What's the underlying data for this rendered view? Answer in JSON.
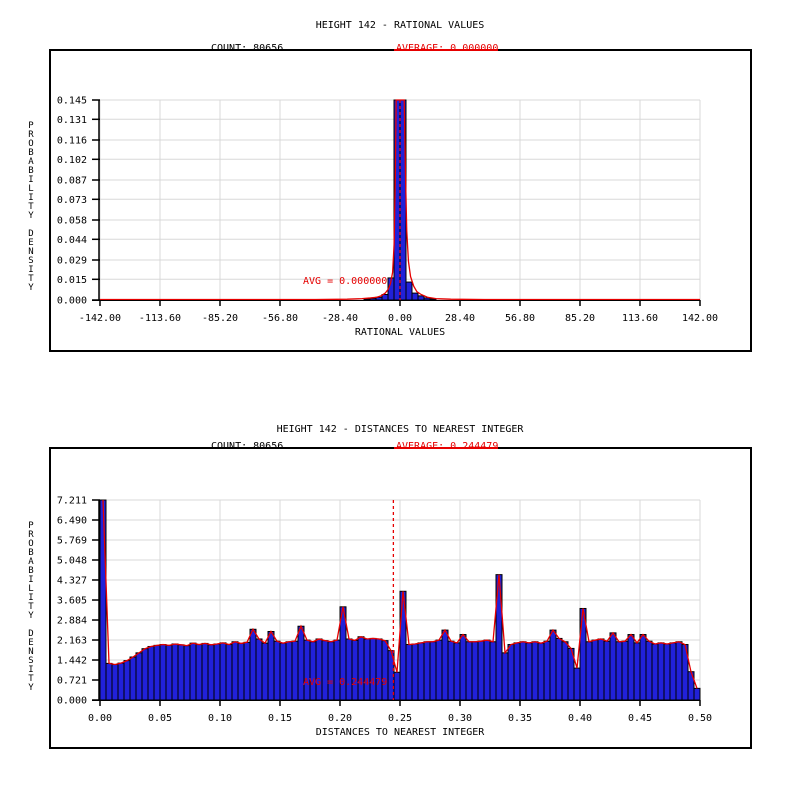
{
  "figure": {
    "background": "#ffffff",
    "colors": {
      "bar_fill": "#2121d9",
      "bar_edge": "#000000",
      "red_line": "#e60000",
      "grid": "#d8d8d8",
      "axis": "#000000",
      "text": "#000000"
    }
  },
  "chart_data": [
    {
      "id": "rational-values-histogram",
      "type": "bar",
      "title": "HEIGHT 142 - RATIONAL VALUES",
      "count_label": "COUNT: 80656",
      "average_label": "AVERAGE: 0.000000",
      "avg_annotation": "AVG = 0.000000",
      "xlabel": "RATIONAL VALUES",
      "ylabel": "PROBABILITY DENSITY",
      "x_ticks": [
        "-142.00",
        "-113.60",
        "-85.20",
        "-56.80",
        "-28.40",
        "0.00",
        "28.40",
        "56.80",
        "85.20",
        "113.60",
        "142.00"
      ],
      "y_ticks": [
        "0.145",
        "0.131",
        "0.116",
        "0.102",
        "0.087",
        "0.073",
        "0.058",
        "0.044",
        "0.029",
        "0.015",
        "0.000"
      ],
      "xlim": [
        -142,
        142
      ],
      "ylim": [
        0,
        0.145
      ],
      "grid": true,
      "avg_value": 0.0,
      "bars": {
        "bin_width": 2.84,
        "centers": [
          -15.62,
          -12.78,
          -9.94,
          -7.1,
          -4.26,
          -1.42,
          1.42,
          4.26,
          7.1,
          9.94,
          12.78,
          15.62
        ],
        "heights": [
          0.0008,
          0.0012,
          0.002,
          0.004,
          0.016,
          0.145,
          0.145,
          0.013,
          0.005,
          0.003,
          0.0015,
          0.0008
        ]
      },
      "red_line": {
        "x": [
          -142,
          -40,
          -25,
          -18,
          -14,
          -11,
          -9,
          -7,
          -5.5,
          -4.5,
          -3.5,
          -2.8,
          -2.2,
          -1.8,
          2.0,
          2.6,
          3.2,
          4.0,
          5.0,
          6.5,
          8,
          10,
          13,
          17,
          24,
          40,
          142
        ],
        "y": [
          0.0003,
          0.0003,
          0.0006,
          0.001,
          0.0015,
          0.002,
          0.003,
          0.005,
          0.008,
          0.012,
          0.02,
          0.04,
          0.09,
          0.145,
          0.145,
          0.09,
          0.05,
          0.028,
          0.017,
          0.01,
          0.006,
          0.004,
          0.002,
          0.001,
          0.0006,
          0.0003,
          0.0003
        ]
      }
    },
    {
      "id": "nearest-integer-distances-histogram",
      "type": "bar",
      "title": "HEIGHT 142 - DISTANCES TO NEAREST INTEGER",
      "count_label": "COUNT: 80656",
      "average_label": "AVERAGE: 0.244479",
      "avg_annotation": "AVG = 0.244479",
      "xlabel": "DISTANCES TO NEAREST INTEGER",
      "ylabel": "PROBABILITY DENSITY",
      "x_ticks": [
        "0.00",
        "0.05",
        "0.10",
        "0.15",
        "0.20",
        "0.25",
        "0.30",
        "0.35",
        "0.40",
        "0.45",
        "0.50"
      ],
      "y_ticks": [
        "7.211",
        "6.490",
        "5.769",
        "5.048",
        "4.327",
        "3.605",
        "2.884",
        "2.163",
        "1.442",
        "0.721",
        "0.000"
      ],
      "xlim": [
        0,
        0.5
      ],
      "ylim": [
        0,
        7.211
      ],
      "grid": true,
      "avg_value": 0.244479,
      "bars": {
        "bin_width": 0.005,
        "x_start": 0,
        "values": [
          7.211,
          1.32,
          1.28,
          1.33,
          1.42,
          1.55,
          1.7,
          1.85,
          1.93,
          1.97,
          2.0,
          1.97,
          2.02,
          1.99,
          1.96,
          2.05,
          2.0,
          2.04,
          1.99,
          2.02,
          2.06,
          2.0,
          2.1,
          2.04,
          2.08,
          2.55,
          2.2,
          2.05,
          2.47,
          2.12,
          2.05,
          2.1,
          2.12,
          2.66,
          2.16,
          2.1,
          2.2,
          2.14,
          2.1,
          2.16,
          3.36,
          2.2,
          2.15,
          2.28,
          2.2,
          2.22,
          2.2,
          2.14,
          1.78,
          1.0,
          3.92,
          2.0,
          2.02,
          2.06,
          2.1,
          2.1,
          2.16,
          2.52,
          2.12,
          2.06,
          2.36,
          2.1,
          2.1,
          2.12,
          2.16,
          2.1,
          4.52,
          1.7,
          2.0,
          2.06,
          2.1,
          2.06,
          2.1,
          2.05,
          2.12,
          2.52,
          2.22,
          2.1,
          1.86,
          1.15,
          3.3,
          2.1,
          2.16,
          2.2,
          2.12,
          2.42,
          2.1,
          2.12,
          2.36,
          2.06,
          2.36,
          2.12,
          2.02,
          2.06,
          2.02,
          2.06,
          2.1,
          2.0,
          1.02,
          0.42
        ]
      },
      "red_line": "follow-bars"
    }
  ]
}
